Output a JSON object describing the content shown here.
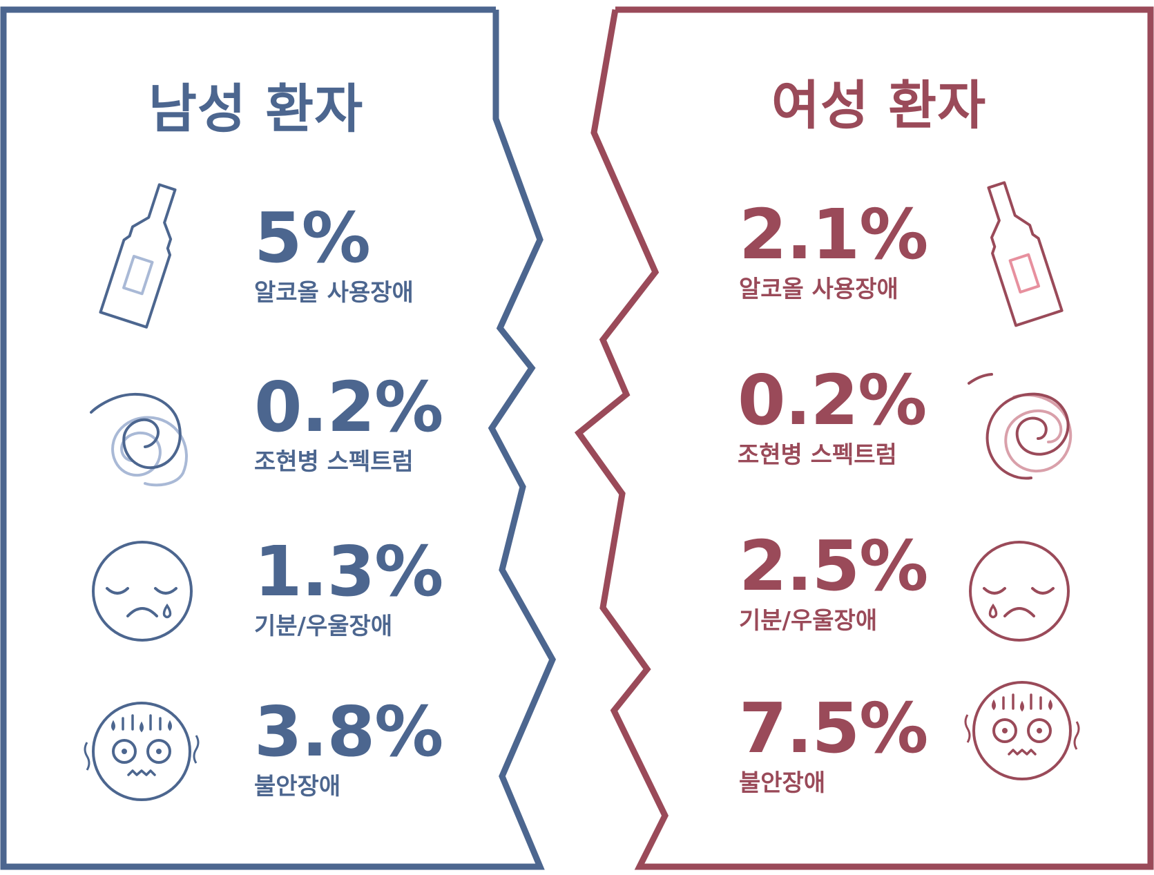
{
  "colors": {
    "male": "#4c668f",
    "male_light": "#a9b9d6",
    "female": "#9a4a59",
    "female_light": "#e7909e"
  },
  "male": {
    "title": "남성 환자",
    "stats": [
      {
        "value": "5%",
        "label": "알코올 사용장애",
        "icon": "bottle-icon"
      },
      {
        "value": "0.2%",
        "label": "조현병 스펙트럼",
        "icon": "spiral-icon"
      },
      {
        "value": "1.3%",
        "label": "기분/우울장애",
        "icon": "sad-face-icon"
      },
      {
        "value": "3.8%",
        "label": "불안장애",
        "icon": "anxious-face-icon"
      }
    ]
  },
  "female": {
    "title": "여성 환자",
    "stats": [
      {
        "value": "2.1%",
        "label": "알코올 사용장애",
        "icon": "bottle-icon"
      },
      {
        "value": "0.2%",
        "label": "조현병 스펙트럼",
        "icon": "spiral-icon"
      },
      {
        "value": "2.5%",
        "label": "기분/우울장애",
        "icon": "sad-face-icon"
      },
      {
        "value": "7.5%",
        "label": "불안장애",
        "icon": "anxious-face-icon"
      }
    ]
  }
}
